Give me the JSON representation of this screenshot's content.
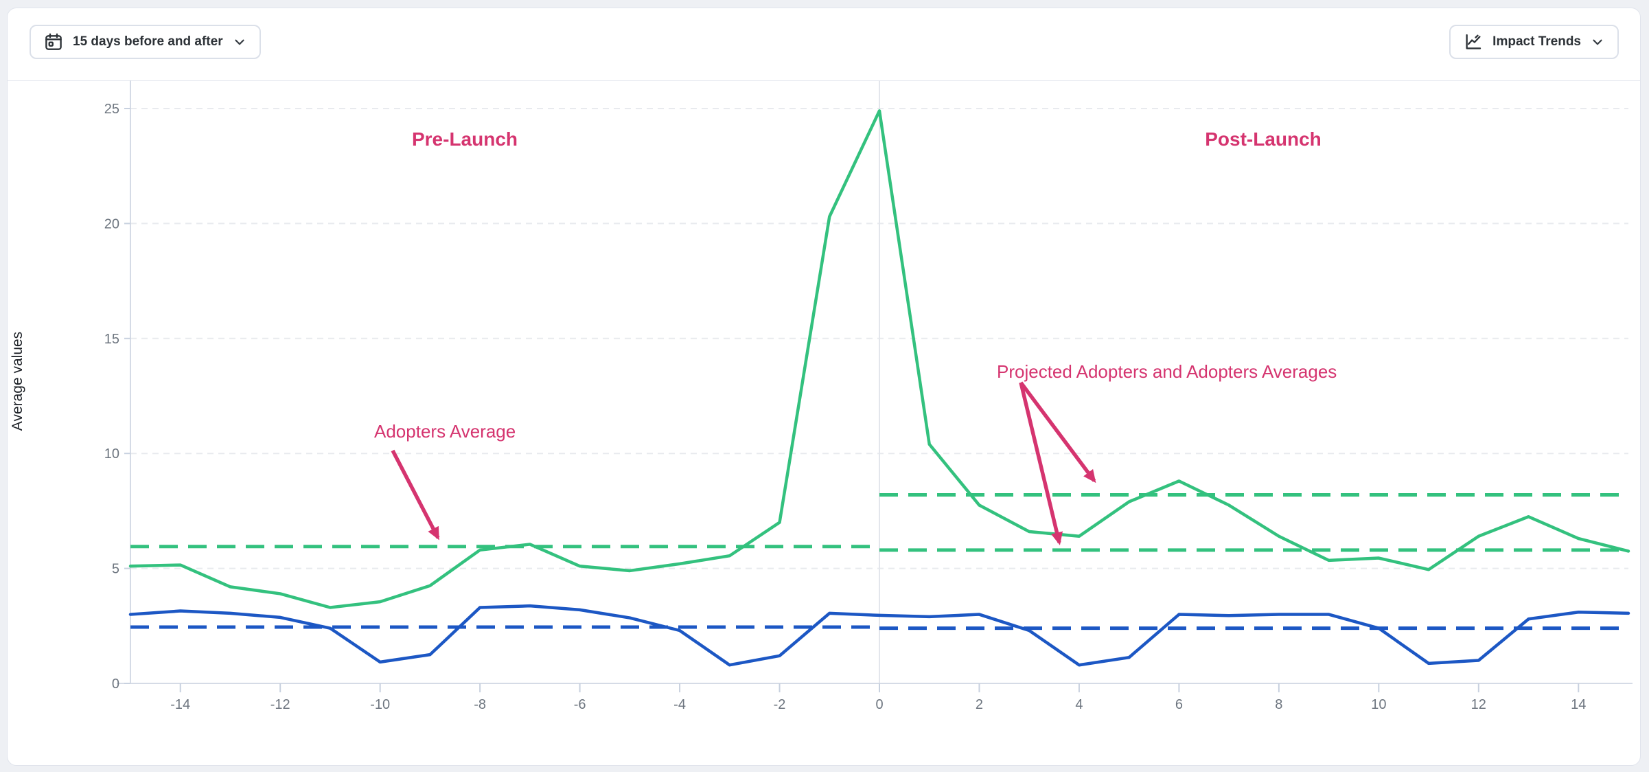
{
  "toolbar": {
    "date_range": {
      "label": "15 days before and after",
      "icon": "calendar-icon"
    },
    "trends": {
      "label": "Impact Trends",
      "icon": "line-chart-icon"
    }
  },
  "chart": {
    "annotations": {
      "pre_launch": "Pre-Launch",
      "post_launch": "Post-Launch",
      "adopters_average": "Adopters Average",
      "projected": "Projected Adopters and Adopters Averages"
    },
    "colors": {
      "green_series": "#33c17e",
      "blue_series": "#1c57c4",
      "annotation_pink": "#d5346f",
      "grid": "#e8eaee",
      "axis": "#d5dbe6",
      "tick_text": "#6d757f"
    }
  },
  "chart_data": {
    "type": "line",
    "title": "",
    "xlabel": "",
    "ylabel": "Average values",
    "xlim": [
      -15,
      15
    ],
    "ylim": [
      0,
      25
    ],
    "x_ticks": [
      -14,
      -12,
      -10,
      -8,
      -6,
      -4,
      -2,
      0,
      2,
      4,
      6,
      8,
      10,
      12,
      14
    ],
    "y_ticks": [
      0,
      5,
      10,
      15,
      20,
      25
    ],
    "grid": "horizontal-dashed",
    "zero_line": {
      "x": 0,
      "style": "vertical-solid"
    },
    "x": [
      -15,
      -14,
      -13,
      -12,
      -11,
      -10,
      -9,
      -8,
      -7,
      -6,
      -5,
      -4,
      -3,
      -2,
      -1,
      0,
      1,
      2,
      3,
      4,
      5,
      6,
      7,
      8,
      9,
      10,
      11,
      12,
      13,
      14,
      15
    ],
    "series": [
      {
        "name": "adopters",
        "color": "#33c17e",
        "style": "solid",
        "values": [
          5.1,
          5.15,
          4.2,
          3.9,
          3.3,
          3.55,
          4.25,
          5.8,
          6.05,
          5.1,
          4.9,
          5.2,
          5.55,
          7.0,
          20.3,
          24.9,
          10.4,
          7.75,
          6.6,
          6.4,
          7.9,
          8.8,
          7.75,
          6.4,
          5.35,
          5.45,
          4.95,
          6.4,
          7.25,
          6.3,
          5.75
        ]
      },
      {
        "name": "blue-series",
        "color": "#1c57c4",
        "style": "solid",
        "values": [
          3.0,
          3.15,
          3.05,
          2.87,
          2.4,
          0.93,
          1.25,
          3.3,
          3.37,
          3.2,
          2.85,
          2.3,
          0.8,
          1.2,
          3.05,
          2.96,
          2.9,
          3.0,
          2.3,
          0.8,
          1.13,
          3.0,
          2.95,
          3.0,
          3.0,
          2.4,
          0.87,
          1.0,
          2.8,
          3.1,
          3.05
        ]
      }
    ],
    "reference_lines": [
      {
        "name": "adopters-average-pre-launch",
        "color": "#33c17e",
        "style": "dashed",
        "value": 5.95,
        "x_range": [
          -15,
          0
        ]
      },
      {
        "name": "adopters-average-post-launch",
        "color": "#33c17e",
        "style": "dashed",
        "value": 5.8,
        "x_range": [
          0,
          15
        ]
      },
      {
        "name": "projected-adopters-average-post-launch",
        "color": "#33c17e",
        "style": "dashed",
        "value": 8.2,
        "x_range": [
          0,
          15
        ]
      },
      {
        "name": "blue-series-average-pre-launch",
        "color": "#1c57c4",
        "style": "dashed",
        "value": 2.45,
        "x_range": [
          -15,
          0
        ]
      },
      {
        "name": "blue-series-average-post-launch",
        "color": "#1c57c4",
        "style": "dashed",
        "value": 2.4,
        "x_range": [
          0,
          15
        ]
      }
    ],
    "legend": "none"
  }
}
